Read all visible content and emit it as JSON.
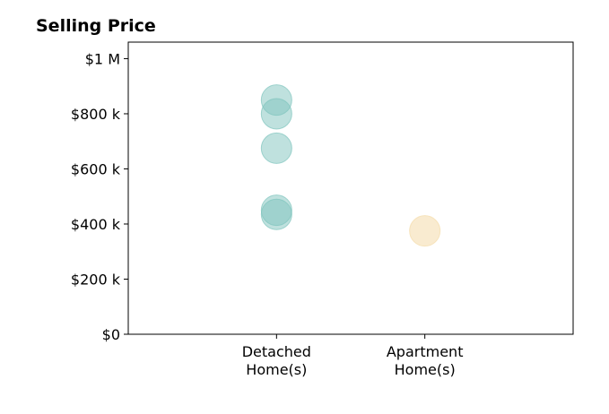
{
  "chart_data": {
    "type": "scatter",
    "title": "Selling Price",
    "xlabel": "",
    "ylabel": "",
    "categories": [
      {
        "label_lines": [
          "Detached",
          "Home(s)"
        ]
      },
      {
        "label_lines": [
          "Apartment",
          "Home(s)"
        ]
      }
    ],
    "x_range": [
      -1,
      2
    ],
    "ylim": [
      0,
      1060000
    ],
    "y_ticks": [
      {
        "value": 0,
        "label": "$0"
      },
      {
        "value": 200000,
        "label": "$200 k"
      },
      {
        "value": 400000,
        "label": "$400 k"
      },
      {
        "value": 600000,
        "label": "$600 k"
      },
      {
        "value": 800000,
        "label": "$800 k"
      },
      {
        "value": 1000000,
        "label": "$1 M"
      }
    ],
    "grid": false,
    "legend": "none",
    "series": [
      {
        "category_index": 0,
        "color": "#7fc4bd",
        "opacity": 0.5,
        "values": [
          850000,
          800000,
          675000,
          450000,
          435000
        ]
      },
      {
        "category_index": 1,
        "color": "#f5deb0",
        "opacity": 0.6,
        "values": [
          375000
        ]
      }
    ]
  }
}
